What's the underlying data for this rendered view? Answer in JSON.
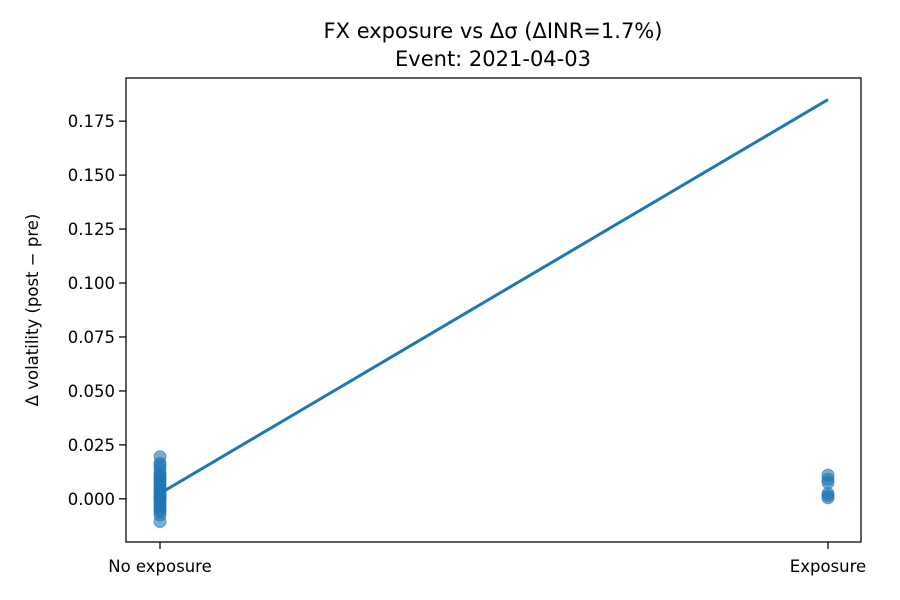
{
  "chart_data": {
    "type": "scatter",
    "title": "FX exposure vs Δσ  (ΔINR=1.7%)",
    "subtitle": "Event: 2021-04-03",
    "xlabel": "",
    "ylabel": "Δ volatility (post − pre)",
    "categories": [
      "No exposure",
      "Exposure"
    ],
    "ylim": [
      -0.02,
      0.195
    ],
    "y_ticks": [
      "0.000",
      "0.025",
      "0.050",
      "0.075",
      "0.100",
      "0.125",
      "0.150",
      "0.175"
    ],
    "grid": false,
    "legend": "none",
    "series": [
      {
        "type": "scatter",
        "color": "#1f77b4",
        "points": [
          {
            "x": 0,
            "y": -0.0105
          },
          {
            "x": 0,
            "y": -0.0075
          },
          {
            "x": 0,
            "y": -0.006
          },
          {
            "x": 0,
            "y": -0.005
          },
          {
            "x": 0,
            "y": -0.004
          },
          {
            "x": 0,
            "y": -0.003
          },
          {
            "x": 0,
            "y": -0.002
          },
          {
            "x": 0,
            "y": -0.001
          },
          {
            "x": 0,
            "y": 0.0
          },
          {
            "x": 0,
            "y": 0.0005
          },
          {
            "x": 0,
            "y": 0.001
          },
          {
            "x": 0,
            "y": 0.0015
          },
          {
            "x": 0,
            "y": 0.002
          },
          {
            "x": 0,
            "y": 0.003
          },
          {
            "x": 0,
            "y": 0.004
          },
          {
            "x": 0,
            "y": 0.005
          },
          {
            "x": 0,
            "y": 0.006
          },
          {
            "x": 0,
            "y": 0.007
          },
          {
            "x": 0,
            "y": 0.008
          },
          {
            "x": 0,
            "y": 0.009
          },
          {
            "x": 0,
            "y": 0.01
          },
          {
            "x": 0,
            "y": 0.011
          },
          {
            "x": 0,
            "y": 0.012
          },
          {
            "x": 0,
            "y": 0.014
          },
          {
            "x": 0,
            "y": 0.0155
          },
          {
            "x": 0,
            "y": 0.0165
          },
          {
            "x": 0,
            "y": 0.0195
          },
          {
            "x": 1,
            "y": 0.0005
          },
          {
            "x": 1,
            "y": 0.0015
          },
          {
            "x": 1,
            "y": 0.0025
          },
          {
            "x": 1,
            "y": 0.0075
          },
          {
            "x": 1,
            "y": 0.009
          },
          {
            "x": 1,
            "y": 0.011
          }
        ]
      },
      {
        "type": "line",
        "color": "#1f77b4",
        "x": [
          0,
          1
        ],
        "y": [
          0.0025,
          0.185
        ]
      }
    ]
  }
}
